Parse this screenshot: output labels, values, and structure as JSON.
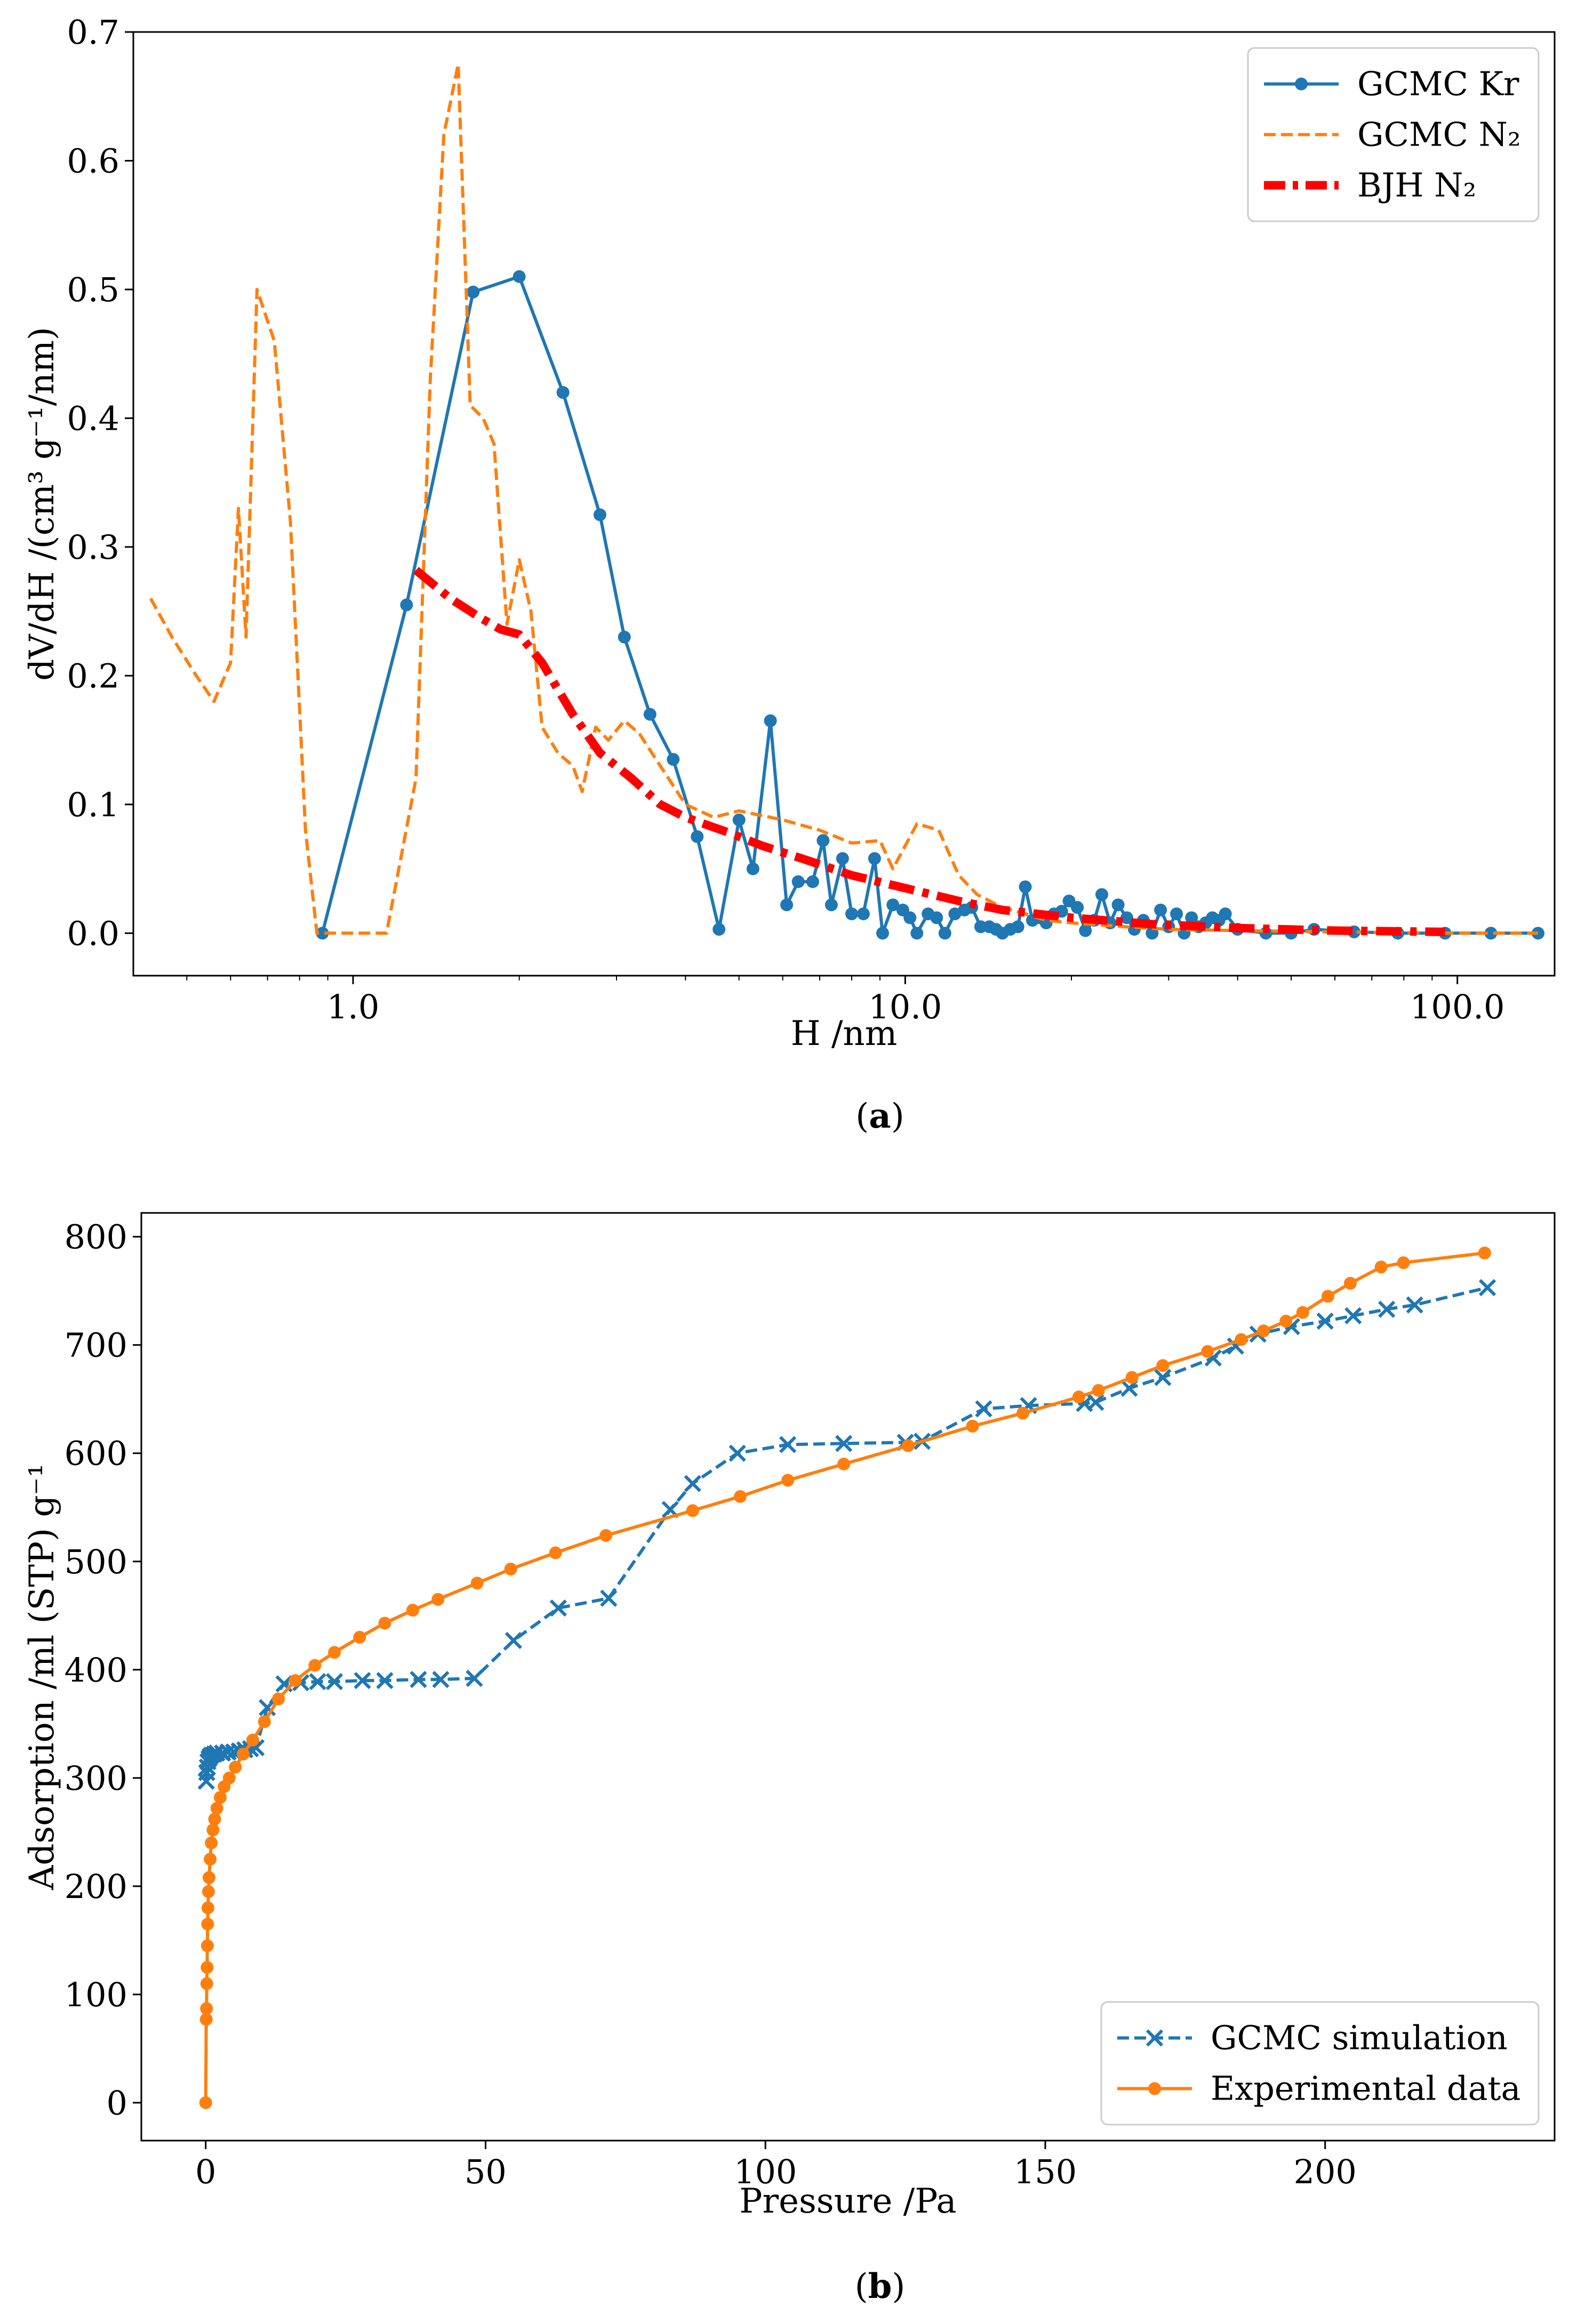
{
  "chart_data": [
    {
      "type": "line",
      "caption_label": "a",
      "xlabel": "H /nm",
      "ylabel": "dV/dH /(cm³ g⁻¹/nm)",
      "xscale": "log",
      "xlim": [
        0.4,
        150
      ],
      "ylim": [
        -0.033,
        0.7
      ],
      "xticks": [
        1,
        10,
        100
      ],
      "xtick_labels": [
        "1.0",
        "10.0",
        "100.0"
      ],
      "yticks": [
        0,
        0.1,
        0.2,
        0.3,
        0.4,
        0.5,
        0.6,
        0.7
      ],
      "ytick_labels": [
        "0.0",
        "0.1",
        "0.2",
        "0.3",
        "0.4",
        "0.5",
        "0.6",
        "0.7"
      ],
      "grid": false,
      "legend_position": "top-right",
      "series": [
        {
          "name": "GCMC Kr",
          "color": "#1f77b4",
          "style": "solid-marker-circle",
          "points": [
            [
              0.88,
              0.0
            ],
            [
              1.25,
              0.255
            ],
            [
              1.65,
              0.498
            ],
            [
              2.0,
              0.51
            ],
            [
              2.4,
              0.42
            ],
            [
              2.8,
              0.325
            ],
            [
              3.1,
              0.23
            ],
            [
              3.45,
              0.17
            ],
            [
              3.8,
              0.135
            ],
            [
              4.2,
              0.075
            ],
            [
              4.6,
              0.003
            ],
            [
              5.0,
              0.088
            ],
            [
              5.3,
              0.05
            ],
            [
              5.7,
              0.165
            ],
            [
              6.1,
              0.022
            ],
            [
              6.4,
              0.04
            ],
            [
              6.8,
              0.04
            ],
            [
              7.1,
              0.072
            ],
            [
              7.35,
              0.022
            ],
            [
              7.7,
              0.058
            ],
            [
              8.0,
              0.015
            ],
            [
              8.4,
              0.015
            ],
            [
              8.8,
              0.058
            ],
            [
              9.1,
              0.0
            ],
            [
              9.5,
              0.022
            ],
            [
              9.9,
              0.018
            ],
            [
              10.2,
              0.012
            ],
            [
              10.5,
              0.0
            ],
            [
              11.0,
              0.015
            ],
            [
              11.4,
              0.012
            ],
            [
              11.8,
              0.0
            ],
            [
              12.3,
              0.015
            ],
            [
              12.8,
              0.018
            ],
            [
              13.2,
              0.02
            ],
            [
              13.7,
              0.005
            ],
            [
              14.2,
              0.005
            ],
            [
              14.6,
              0.003
            ],
            [
              15.0,
              0.0
            ],
            [
              15.5,
              0.003
            ],
            [
              16.0,
              0.005
            ],
            [
              16.5,
              0.036
            ],
            [
              17.0,
              0.01
            ],
            [
              17.5,
              0.012
            ],
            [
              18.0,
              0.008
            ],
            [
              18.6,
              0.015
            ],
            [
              19.2,
              0.017
            ],
            [
              19.8,
              0.025
            ],
            [
              20.5,
              0.02
            ],
            [
              21.2,
              0.002
            ],
            [
              22.0,
              0.01
            ],
            [
              22.7,
              0.03
            ],
            [
              23.5,
              0.008
            ],
            [
              24.3,
              0.022
            ],
            [
              25.2,
              0.012
            ],
            [
              26.0,
              0.003
            ],
            [
              27.0,
              0.01
            ],
            [
              28.0,
              0.0
            ],
            [
              29.0,
              0.018
            ],
            [
              30.0,
              0.005
            ],
            [
              31.0,
              0.015
            ],
            [
              32.0,
              0.0
            ],
            [
              33.0,
              0.012
            ],
            [
              34.0,
              0.005
            ],
            [
              35.0,
              0.008
            ],
            [
              36.0,
              0.012
            ],
            [
              37.0,
              0.01
            ],
            [
              38.0,
              0.015
            ],
            [
              40.0,
              0.003
            ],
            [
              45.0,
              0.0
            ],
            [
              50.0,
              0.0
            ],
            [
              55.0,
              0.003
            ],
            [
              65.0,
              0.001
            ],
            [
              78.0,
              0.0
            ],
            [
              95.0,
              0.0
            ],
            [
              115.0,
              0.0
            ],
            [
              140.0,
              0.0
            ]
          ]
        },
        {
          "name": "GCMC N₂",
          "color": "#ff7f0e",
          "style": "dashed",
          "points": [
            [
              0.43,
              0.26
            ],
            [
              0.47,
              0.23
            ],
            [
              0.52,
              0.2
            ],
            [
              0.56,
              0.18
            ],
            [
              0.6,
              0.21
            ],
            [
              0.62,
              0.33
            ],
            [
              0.64,
              0.23
            ],
            [
              0.67,
              0.5
            ],
            [
              0.72,
              0.46
            ],
            [
              0.77,
              0.32
            ],
            [
              0.82,
              0.08
            ],
            [
              0.86,
              0.0
            ],
            [
              1.0,
              0.0
            ],
            [
              1.15,
              0.0
            ],
            [
              1.3,
              0.12
            ],
            [
              1.38,
              0.43
            ],
            [
              1.46,
              0.62
            ],
            [
              1.55,
              0.675
            ],
            [
              1.63,
              0.41
            ],
            [
              1.72,
              0.4
            ],
            [
              1.8,
              0.38
            ],
            [
              1.9,
              0.24
            ],
            [
              2.0,
              0.29
            ],
            [
              2.1,
              0.25
            ],
            [
              2.2,
              0.16
            ],
            [
              2.35,
              0.14
            ],
            [
              2.5,
              0.13
            ],
            [
              2.6,
              0.11
            ],
            [
              2.75,
              0.16
            ],
            [
              2.9,
              0.15
            ],
            [
              3.1,
              0.165
            ],
            [
              3.3,
              0.155
            ],
            [
              3.6,
              0.13
            ],
            [
              4.0,
              0.1
            ],
            [
              4.5,
              0.09
            ],
            [
              5.0,
              0.095
            ],
            [
              6.0,
              0.088
            ],
            [
              7.0,
              0.08
            ],
            [
              8.0,
              0.07
            ],
            [
              9.0,
              0.072
            ],
            [
              9.5,
              0.05
            ],
            [
              10.5,
              0.085
            ],
            [
              11.5,
              0.08
            ],
            [
              12.5,
              0.045
            ],
            [
              13.5,
              0.03
            ],
            [
              15.0,
              0.02
            ],
            [
              16.5,
              0.015
            ],
            [
              18.0,
              0.01
            ],
            [
              20.0,
              0.008
            ],
            [
              25.0,
              0.005
            ],
            [
              30.0,
              0.003
            ],
            [
              40.0,
              0.002
            ],
            [
              60.0,
              0.001
            ],
            [
              100.0,
              0.0
            ],
            [
              140.0,
              0.0
            ]
          ]
        },
        {
          "name": "BJH N₂",
          "color": "#ff0000",
          "style": "dashdot-thick",
          "points": [
            [
              1.3,
              0.282
            ],
            [
              1.5,
              0.26
            ],
            [
              1.7,
              0.245
            ],
            [
              1.85,
              0.236
            ],
            [
              2.0,
              0.232
            ],
            [
              2.2,
              0.21
            ],
            [
              2.5,
              0.17
            ],
            [
              2.8,
              0.14
            ],
            [
              3.2,
              0.12
            ],
            [
              3.6,
              0.1
            ],
            [
              4.0,
              0.09
            ],
            [
              4.8,
              0.078
            ],
            [
              5.5,
              0.068
            ],
            [
              6.5,
              0.058
            ],
            [
              8.0,
              0.045
            ],
            [
              10.0,
              0.035
            ],
            [
              12.5,
              0.025
            ],
            [
              15.0,
              0.018
            ],
            [
              20.0,
              0.012
            ],
            [
              28.0,
              0.007
            ],
            [
              40.0,
              0.004
            ],
            [
              60.0,
              0.002
            ],
            [
              95.0,
              0.001
            ]
          ]
        }
      ]
    },
    {
      "type": "line",
      "caption_label": "b",
      "xlabel": "Pressure /Pa",
      "ylabel": "Adsorption /ml (STP) g⁻¹",
      "xlim": [
        -11.5,
        241
      ],
      "ylim": [
        -35,
        822
      ],
      "xticks": [
        0,
        50,
        100,
        150,
        200
      ],
      "xtick_labels": [
        "0",
        "50",
        "100",
        "150",
        "200"
      ],
      "yticks": [
        0,
        100,
        200,
        300,
        400,
        500,
        600,
        700,
        800
      ],
      "ytick_labels": [
        "0",
        "100",
        "200",
        "300",
        "400",
        "500",
        "600",
        "700",
        "800"
      ],
      "grid": false,
      "legend_position": "bottom-right",
      "series": [
        {
          "name": "GCMC simulation",
          "color": "#1f77b4",
          "style": "dashed-marker-x",
          "points": [
            [
              0.1,
              297
            ],
            [
              0.2,
              305
            ],
            [
              0.3,
              310
            ],
            [
              0.4,
              315
            ],
            [
              0.6,
              318
            ],
            [
              0.8,
              320
            ],
            [
              1.0,
              321
            ],
            [
              1.5,
              322
            ],
            [
              2.0,
              323
            ],
            [
              3.0,
              323
            ],
            [
              4.0,
              324
            ],
            [
              5.0,
              324
            ],
            [
              6.0,
              325
            ],
            [
              7.0,
              326
            ],
            [
              8.0,
              327
            ],
            [
              9.0,
              328
            ],
            [
              11.0,
              365
            ],
            [
              14.0,
              387
            ],
            [
              17.0,
              388
            ],
            [
              20.0,
              389
            ],
            [
              23.0,
              389
            ],
            [
              28.0,
              390
            ],
            [
              32.0,
              390
            ],
            [
              38.0,
              391
            ],
            [
              42.0,
              391
            ],
            [
              48.0,
              392
            ],
            [
              55.0,
              427
            ],
            [
              63.0,
              457
            ],
            [
              72.0,
              466
            ],
            [
              83.0,
              548
            ],
            [
              87.0,
              572
            ],
            [
              95.0,
              600
            ],
            [
              104.0,
              608
            ],
            [
              114.0,
              609
            ],
            [
              125.0,
              610
            ],
            [
              128.0,
              611
            ],
            [
              139.0,
              641
            ],
            [
              147.0,
              644
            ],
            [
              157.0,
              646
            ],
            [
              159.0,
              647
            ],
            [
              165.0,
              660
            ],
            [
              171.0,
              670
            ],
            [
              180.0,
              688
            ],
            [
              184.0,
              699
            ],
            [
              188.0,
              710
            ],
            [
              194.0,
              717
            ],
            [
              200.0,
              722
            ],
            [
              205.0,
              727
            ],
            [
              211.0,
              733
            ],
            [
              216.0,
              737
            ],
            [
              229.0,
              753
            ]
          ]
        },
        {
          "name": "Experimental data",
          "color": "#ff7f0e",
          "style": "solid-marker-circle",
          "points": [
            [
              0.0,
              0
            ],
            [
              0.1,
              77
            ],
            [
              0.15,
              87
            ],
            [
              0.2,
              110
            ],
            [
              0.25,
              125
            ],
            [
              0.3,
              145
            ],
            [
              0.35,
              165
            ],
            [
              0.4,
              180
            ],
            [
              0.5,
              195
            ],
            [
              0.6,
              208
            ],
            [
              0.8,
              225
            ],
            [
              1.0,
              240
            ],
            [
              1.3,
              252
            ],
            [
              1.6,
              262
            ],
            [
              2.0,
              272
            ],
            [
              2.6,
              282
            ],
            [
              3.3,
              292
            ],
            [
              4.2,
              300
            ],
            [
              5.3,
              310
            ],
            [
              6.7,
              322
            ],
            [
              8.4,
              335
            ],
            [
              10.5,
              352
            ],
            [
              13.0,
              373
            ],
            [
              16.0,
              390
            ],
            [
              19.5,
              404
            ],
            [
              23.0,
              416
            ],
            [
              27.5,
              430
            ],
            [
              32.0,
              443
            ],
            [
              37.0,
              455
            ],
            [
              41.5,
              465
            ],
            [
              48.5,
              480
            ],
            [
              54.5,
              493
            ],
            [
              62.5,
              508
            ],
            [
              71.5,
              524
            ],
            [
              87.0,
              547
            ],
            [
              95.5,
              560
            ],
            [
              104.0,
              575
            ],
            [
              114.0,
              590
            ],
            [
              125.5,
              607
            ],
            [
              137.0,
              625
            ],
            [
              146.0,
              637
            ],
            [
              156.0,
              652
            ],
            [
              159.5,
              658
            ],
            [
              165.5,
              670
            ],
            [
              171.0,
              681
            ],
            [
              179.0,
              694
            ],
            [
              185.0,
              705
            ],
            [
              189.0,
              713
            ],
            [
              193.0,
              722
            ],
            [
              196.0,
              730
            ],
            [
              200.5,
              745
            ],
            [
              204.5,
              757
            ],
            [
              210.0,
              772
            ],
            [
              214.0,
              776
            ],
            [
              228.5,
              785
            ]
          ]
        }
      ]
    }
  ]
}
